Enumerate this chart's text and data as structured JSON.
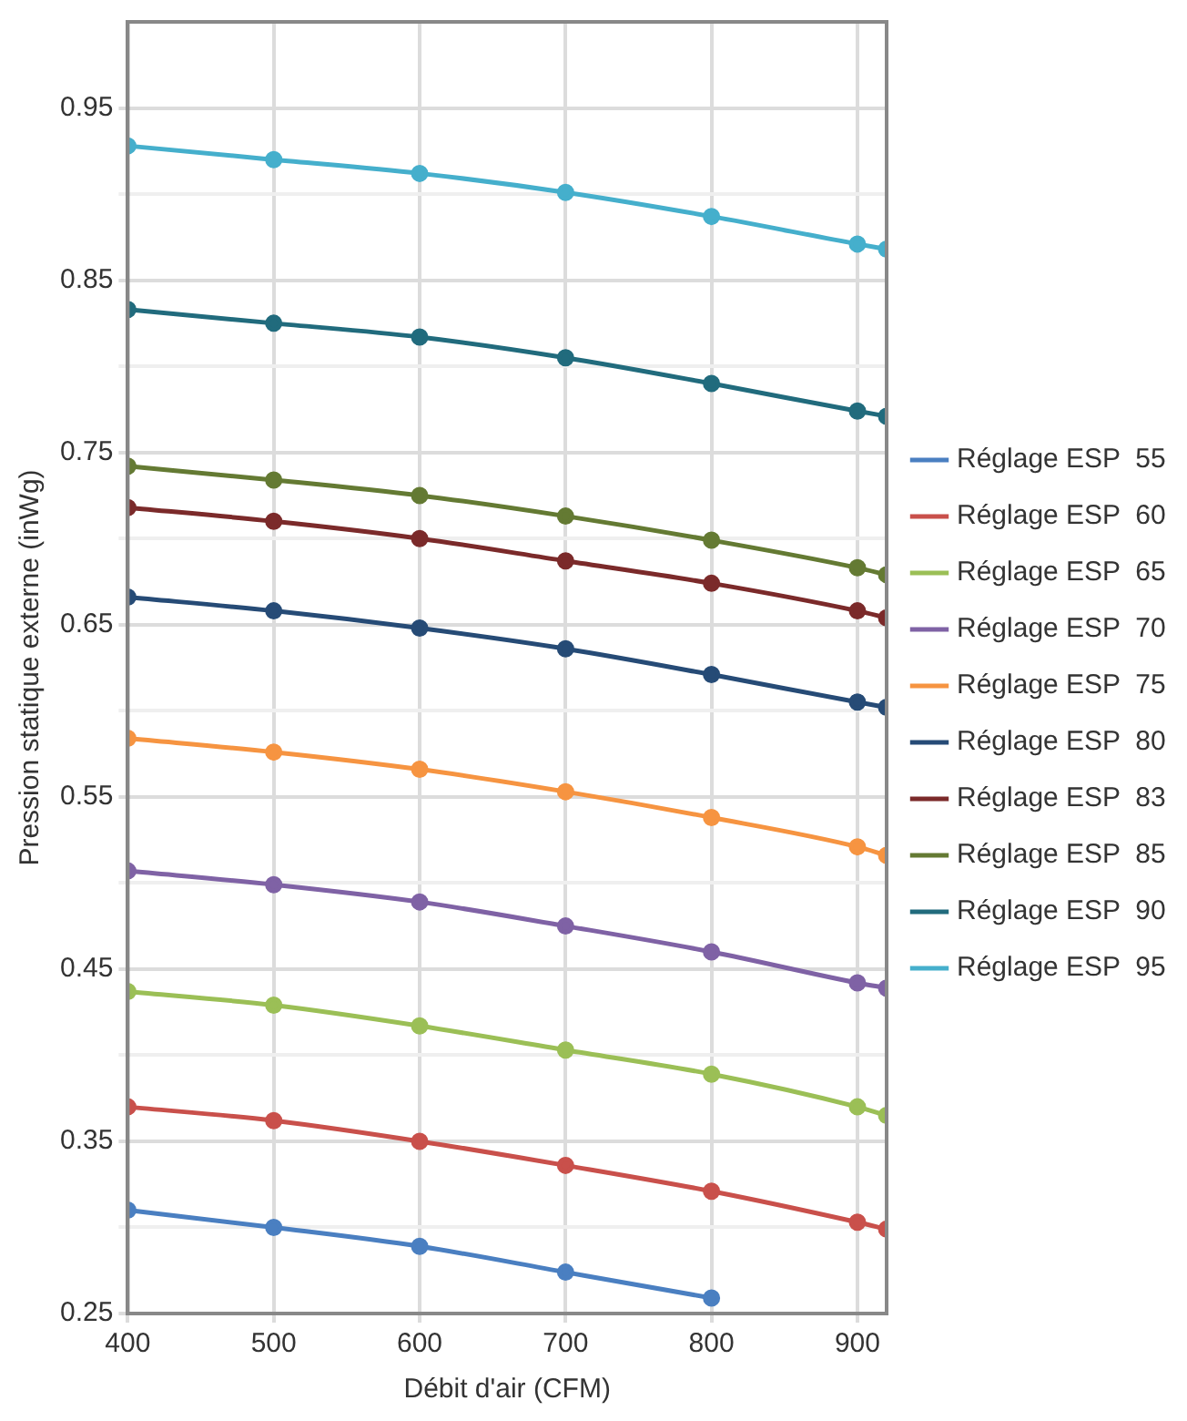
{
  "chart_data": {
    "type": "line",
    "xlabel": "Débit d'air (CFM)",
    "ylabel": "Pression statique externe (inWg)",
    "x": [
      400,
      500,
      600,
      700,
      800,
      900,
      920
    ],
    "xlim": [
      400,
      920
    ],
    "xticks": [
      400,
      500,
      600,
      700,
      800,
      900
    ],
    "ylim": [
      0.25,
      1.0
    ],
    "yticks": [
      0.25,
      {
        "value": 0.3,
        "label": null
      },
      0.35,
      {
        "value": 0.4,
        "label": null
      },
      0.45,
      {
        "value": 0.5,
        "label": null
      },
      0.55,
      {
        "value": 0.6,
        "label": null
      },
      0.65,
      {
        "value": 0.7,
        "label": null
      },
      0.75,
      {
        "value": 0.8,
        "label": null
      },
      0.85,
      {
        "value": 0.9,
        "label": null
      },
      0.95
    ],
    "grid": true,
    "legend": "right",
    "marker": "circle",
    "line_style": "solid",
    "series": [
      {
        "name": "Réglage ESP  55",
        "color": "#4a7fc1",
        "values": [
          0.31,
          0.3,
          0.289,
          0.274,
          0.259,
          null,
          null
        ]
      },
      {
        "name": "Réglage ESP  60",
        "color": "#c9504b",
        "values": [
          0.37,
          0.362,
          0.35,
          0.336,
          0.321,
          0.303,
          0.299
        ]
      },
      {
        "name": "Réglage ESP  65",
        "color": "#9bbf56",
        "values": [
          0.437,
          0.429,
          0.417,
          0.403,
          0.389,
          0.37,
          0.365
        ]
      },
      {
        "name": "Réglage ESP  70",
        "color": "#7f62a5",
        "values": [
          0.507,
          0.499,
          0.489,
          0.475,
          0.46,
          0.442,
          0.439
        ]
      },
      {
        "name": "Réglage ESP  75",
        "color": "#f69441",
        "values": [
          0.584,
          0.576,
          0.566,
          0.553,
          0.538,
          0.521,
          0.516
        ]
      },
      {
        "name": "Réglage ESP  80",
        "color": "#264b76",
        "values": [
          0.666,
          0.658,
          0.648,
          0.636,
          0.621,
          0.605,
          0.602
        ]
      },
      {
        "name": "Réglage ESP  83",
        "color": "#7b2a2a",
        "values": [
          0.718,
          0.71,
          0.7,
          0.687,
          0.674,
          0.658,
          0.654
        ]
      },
      {
        "name": "Réglage ESP  85",
        "color": "#647a33",
        "values": [
          0.742,
          0.734,
          0.725,
          0.713,
          0.699,
          0.683,
          0.679
        ]
      },
      {
        "name": "Réglage ESP  90",
        "color": "#216b7d",
        "values": [
          0.833,
          0.825,
          0.817,
          0.805,
          0.79,
          0.774,
          0.771
        ]
      },
      {
        "name": "Réglage ESP  95",
        "color": "#45afcc",
        "values": [
          0.928,
          0.92,
          0.912,
          0.901,
          0.887,
          0.871,
          0.868
        ]
      }
    ]
  }
}
